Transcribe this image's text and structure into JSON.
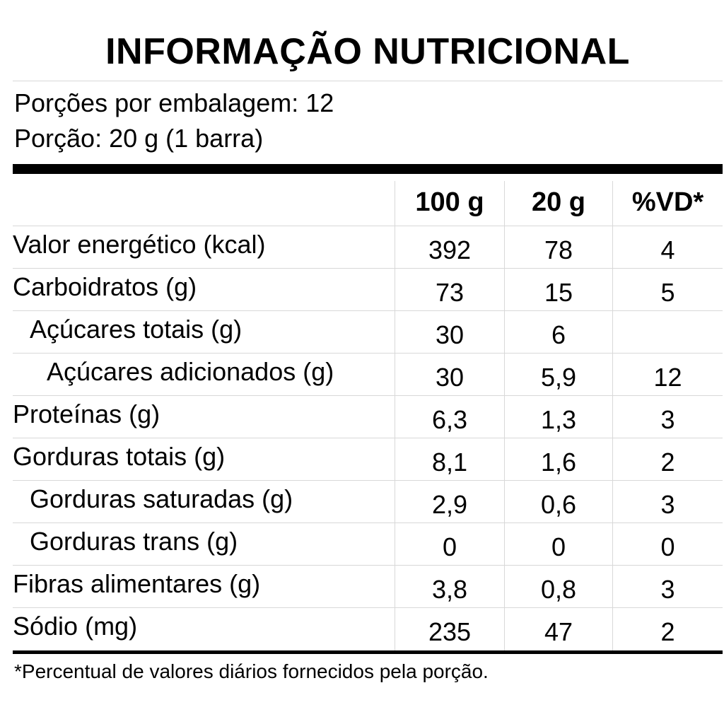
{
  "title": "INFORMAÇÃO NUTRICIONAL",
  "servings_per_package": "Porções por embalagem: 12",
  "serving_size": "Porção: 20 g (1 barra)",
  "columns": [
    "100 g",
    "20 g",
    "%VD*"
  ],
  "rows": [
    {
      "name": "Valor energético (kcal)",
      "per100": "392",
      "per20": "78",
      "vd": "4"
    },
    {
      "name": "Carboidratos (g)",
      "per100": "73",
      "per20": "15",
      "vd": "5"
    },
    {
      "name": "Açúcares totais (g)",
      "per100": "30",
      "per20": "6",
      "vd": ""
    },
    {
      "name": "Açúcares adicionados (g)",
      "per100": "30",
      "per20": "5,9",
      "vd": "12"
    },
    {
      "name": "Proteínas (g)",
      "per100": "6,3",
      "per20": "1,3",
      "vd": "3"
    },
    {
      "name": "Gorduras totais (g)",
      "per100": "8,1",
      "per20": "1,6",
      "vd": "2"
    },
    {
      "name": "Gorduras saturadas (g)",
      "per100": "2,9",
      "per20": "0,6",
      "vd": "3"
    },
    {
      "name": "Gorduras trans (g)",
      "per100": "0",
      "per20": "0",
      "vd": "0"
    },
    {
      "name": "Fibras alimentares (g)",
      "per100": "3,8",
      "per20": "0,8",
      "vd": "3"
    },
    {
      "name": "Sódio (mg)",
      "per100": "235",
      "per20": "47",
      "vd": "2"
    }
  ],
  "footnote": "*Percentual de valores diários fornecidos pela porção."
}
